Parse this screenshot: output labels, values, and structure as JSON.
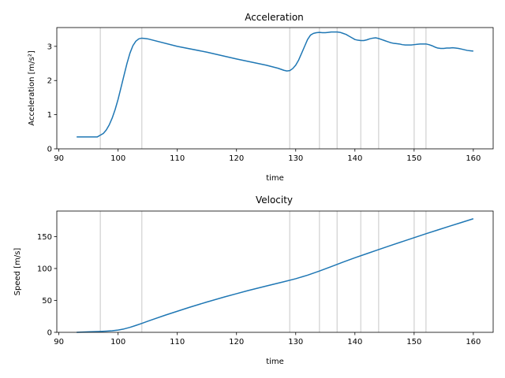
{
  "chart_data": [
    {
      "type": "line",
      "title": "Acceleration",
      "xlabel": "time",
      "ylabel": "Acceleration [m/s²]",
      "xlim": [
        89.65,
        163.35
      ],
      "ylim": [
        0,
        3.55
      ],
      "xticks": [
        90,
        100,
        110,
        120,
        130,
        140,
        150,
        160
      ],
      "yticks": [
        0,
        1,
        2,
        3
      ],
      "grid": false,
      "color": "#1f77b4",
      "vlines": [
        97,
        104,
        129,
        134,
        137,
        141,
        144,
        150,
        152
      ],
      "vline_color": "#d9d9d9",
      "series": [
        {
          "x": [
            93,
            96.5,
            97,
            97.5,
            98,
            98.5,
            99,
            99.5,
            100,
            100.5,
            101,
            101.5,
            102,
            102.5,
            103,
            103.5,
            104,
            104.5,
            105,
            110,
            115,
            120,
            125,
            127,
            128,
            128.5,
            129,
            129.5,
            130,
            130.5,
            131,
            131.5,
            132,
            132.5,
            133,
            133.5,
            134,
            134.5,
            135,
            135.5,
            136,
            136.5,
            137,
            137.5,
            138,
            138.5,
            139,
            139.5,
            140,
            140.5,
            141,
            141.5,
            142,
            142.5,
            143,
            143.5,
            144,
            144.5,
            145,
            145.5,
            146,
            146.5,
            147,
            147.5,
            148,
            148.5,
            149,
            149.5,
            150,
            150.5,
            151,
            151.5,
            152,
            152.5,
            153,
            153.5,
            154,
            154.5,
            155,
            155.5,
            156,
            156.5,
            157,
            157.5,
            158,
            158.5,
            159,
            159.5,
            160
          ],
          "y": [
            0.35,
            0.35,
            0.4,
            0.45,
            0.55,
            0.7,
            0.9,
            1.15,
            1.45,
            1.8,
            2.15,
            2.5,
            2.8,
            3.02,
            3.15,
            3.22,
            3.24,
            3.23,
            3.22,
            3.0,
            2.83,
            2.63,
            2.45,
            2.36,
            2.3,
            2.28,
            2.29,
            2.35,
            2.45,
            2.6,
            2.8,
            3.0,
            3.2,
            3.33,
            3.38,
            3.4,
            3.41,
            3.4,
            3.4,
            3.41,
            3.42,
            3.42,
            3.42,
            3.41,
            3.38,
            3.35,
            3.3,
            3.25,
            3.2,
            3.18,
            3.17,
            3.17,
            3.19,
            3.22,
            3.24,
            3.25,
            3.23,
            3.2,
            3.17,
            3.14,
            3.11,
            3.09,
            3.08,
            3.07,
            3.05,
            3.04,
            3.04,
            3.04,
            3.05,
            3.06,
            3.07,
            3.07,
            3.07,
            3.05,
            3.02,
            2.98,
            2.95,
            2.94,
            2.94,
            2.95,
            2.95,
            2.96,
            2.95,
            2.94,
            2.92,
            2.9,
            2.88,
            2.87,
            2.86
          ]
        }
      ]
    },
    {
      "type": "line",
      "title": "Velocity",
      "xlabel": "time",
      "ylabel": "Speed [m/s]",
      "xlim": [
        89.65,
        163.35
      ],
      "ylim": [
        0,
        190
      ],
      "xticks": [
        90,
        100,
        110,
        120,
        130,
        140,
        150,
        160
      ],
      "yticks": [
        0,
        50,
        100,
        150
      ],
      "grid": false,
      "color": "#1f77b4",
      "vlines": [
        97,
        104,
        129,
        134,
        137,
        141,
        144,
        150,
        152
      ],
      "vline_color": "#d9d9d9",
      "series": [
        {
          "x": [
            93,
            95,
            97,
            98,
            99,
            100,
            101,
            102,
            103,
            104,
            105,
            106,
            108,
            110,
            112,
            115,
            118,
            120,
            122,
            125,
            128,
            130,
            132,
            134,
            136,
            138,
            140,
            142,
            144,
            146,
            148,
            150,
            152,
            154,
            156,
            158,
            160
          ],
          "y": [
            0,
            0.7,
            1.4,
            1.9,
            2.5,
            3.6,
            5.3,
            7.8,
            10.8,
            14.0,
            17.3,
            20.6,
            27.0,
            33.0,
            39.0,
            47.5,
            55.5,
            60.5,
            65.5,
            72.5,
            79.3,
            84.0,
            89.5,
            96.0,
            103.0,
            110.0,
            116.8,
            123.2,
            129.6,
            135.9,
            142.1,
            148.3,
            154.4,
            160.4,
            166.3,
            172.1,
            178.0
          ]
        }
      ]
    }
  ]
}
